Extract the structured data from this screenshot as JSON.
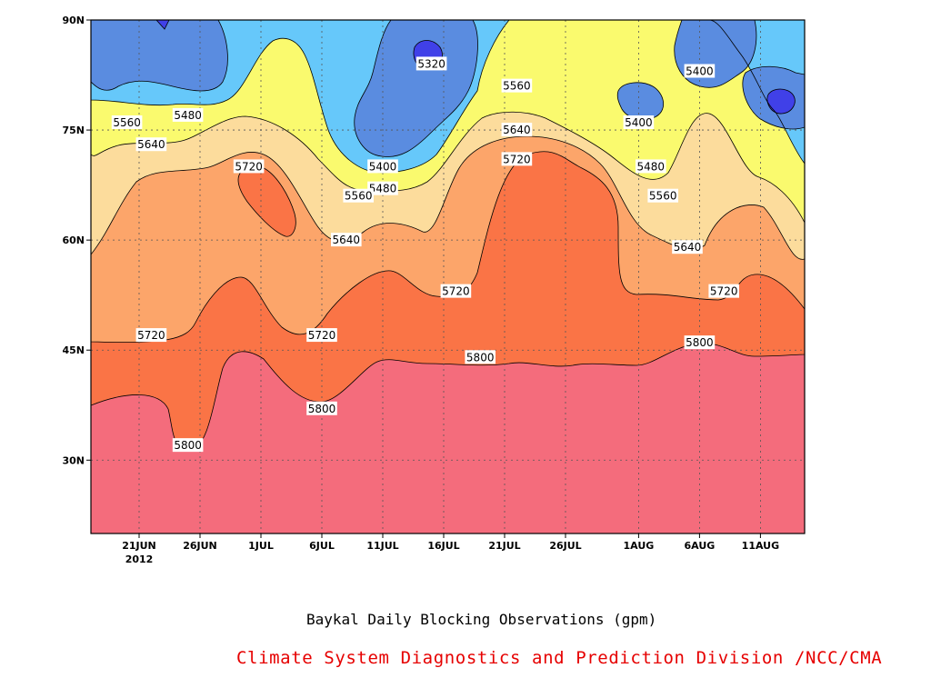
{
  "chart_data": {
    "type": "filled contour",
    "title": "Baykal Daily Blocking Observations (gpm)",
    "credit": "Climate System Diagnostics and Prediction Division /NCC/CMA",
    "x_ticks": [
      "21JUN",
      "26JUN",
      "1JUL",
      "6JUL",
      "11JUL",
      "16JUL",
      "21JUL",
      "26JUL",
      "1AUG",
      "6AUG",
      "11AUG"
    ],
    "x_year_label": "2012",
    "y_ticks": [
      "30N",
      "45N",
      "60N",
      "75N",
      "90N"
    ],
    "y_range_deg": [
      20,
      90
    ],
    "grid": true,
    "levels_gpm": [
      5320,
      5400,
      5480,
      5560,
      5640,
      5720,
      5800
    ],
    "colors": {
      "below_5320": "#4040e8",
      "5320_5400": "#5a8ce0",
      "5400_5480": "#66c8fa",
      "5480_5560": "#fafa6e",
      "5560_5640": "#fcdc9c",
      "5640_5720": "#fca56a",
      "5720_5800": "#fa7446",
      "above_5800": "#f46c7c"
    },
    "contour_labels": [
      {
        "value": "5320",
        "date": "15JUL",
        "lat": 84
      },
      {
        "value": "5400",
        "date": "11JUL",
        "lat": 70
      },
      {
        "value": "5400",
        "date": "1AUG",
        "lat": 76
      },
      {
        "value": "5400",
        "date": "6AUG",
        "lat": 83
      },
      {
        "value": "5480",
        "date": "25JUN",
        "lat": 77
      },
      {
        "value": "5480",
        "date": "11JUL",
        "lat": 67
      },
      {
        "value": "5480",
        "date": "2AUG",
        "lat": 70
      },
      {
        "value": "5560",
        "date": "20JUN",
        "lat": 76
      },
      {
        "value": "5560",
        "date": "9JUL",
        "lat": 66
      },
      {
        "value": "5560",
        "date": "22JUL",
        "lat": 81
      },
      {
        "value": "5560",
        "date": "3AUG",
        "lat": 66
      },
      {
        "value": "5640",
        "date": "22JUN",
        "lat": 73
      },
      {
        "value": "5640",
        "date": "8JUL",
        "lat": 60
      },
      {
        "value": "5640",
        "date": "22JUL",
        "lat": 75
      },
      {
        "value": "5640",
        "date": "5AUG",
        "lat": 59
      },
      {
        "value": "5720",
        "date": "30JUN",
        "lat": 70
      },
      {
        "value": "5720",
        "date": "22JUN",
        "lat": 47
      },
      {
        "value": "5720",
        "date": "6JUL",
        "lat": 47
      },
      {
        "value": "5720",
        "date": "17JUL",
        "lat": 53
      },
      {
        "value": "5720",
        "date": "22JUL",
        "lat": 71
      },
      {
        "value": "5720",
        "date": "8AUG",
        "lat": 53
      },
      {
        "value": "5800",
        "date": "25JUN",
        "lat": 32
      },
      {
        "value": "5800",
        "date": "6JUL",
        "lat": 37
      },
      {
        "value": "5800",
        "date": "19JUL",
        "lat": 44
      },
      {
        "value": "5800",
        "date": "6AUG",
        "lat": 46
      }
    ]
  }
}
